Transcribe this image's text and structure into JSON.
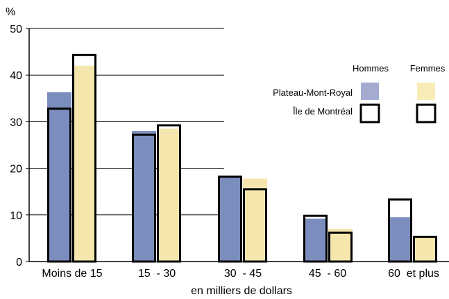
{
  "chart_data": {
    "type": "bar",
    "ylabel": "%",
    "xlabel": "en milliers de dollars",
    "ylim": [
      0,
      50
    ],
    "yticks": [
      0,
      10,
      20,
      30,
      40,
      50
    ],
    "grid": true,
    "categories": [
      "Moins de 15",
      "15  - 30",
      "30  - 45",
      "45  - 60",
      "60  et plus"
    ],
    "series": [
      {
        "name": "Hommes",
        "group": "Plateau-Mont-Royal",
        "values": [
          36.3,
          28.0,
          18.2,
          9.2,
          9.5
        ],
        "color": "#7b8dbd"
      },
      {
        "name": "Femmes",
        "group": "Plateau-Mont-Royal",
        "values": [
          42.0,
          28.5,
          17.8,
          7.0,
          5.3
        ],
        "color": "#f5e6ad"
      },
      {
        "name": "Hommes",
        "group": "Île de Montréal",
        "values": [
          32.8,
          27.2,
          18.2,
          9.8,
          13.3
        ],
        "style": "outline"
      },
      {
        "name": "Femmes",
        "group": "Île de Montréal",
        "values": [
          44.3,
          29.2,
          15.5,
          6.2,
          5.3
        ],
        "style": "outline"
      }
    ],
    "legend": {
      "position": "top-right",
      "columns": [
        "Hommes",
        "Femmes"
      ],
      "rows": [
        "Plateau-Mont-Royal",
        "Île de Montréal"
      ]
    }
  }
}
